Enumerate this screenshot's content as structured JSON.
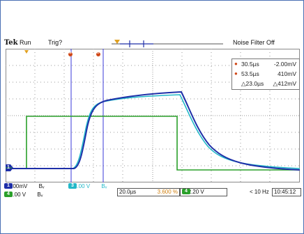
{
  "header": {
    "brand": "Tek",
    "run_state": "Run",
    "trigger_state": "Trig?",
    "noise_filter": "Noise Filter Off"
  },
  "cursor_readout": {
    "cursor1_time": "30.5µs",
    "cursor1_value": "-2.00mV",
    "cursor2_time": "53.5µs",
    "cursor2_value": "410mV",
    "delta_time": "△23.0µs",
    "delta_value": "△412mV"
  },
  "channels": [
    {
      "id": "1",
      "scale": "100mV",
      "suffix": "Bᵥ",
      "color": "#1e2fa8"
    },
    {
      "id": "3",
      "scale": "1.00 V",
      "suffix": "Bᵥ",
      "color": "#22b8c8"
    },
    {
      "id": "4",
      "scale": "1.00 V",
      "suffix": "Bᵥ",
      "color": "#2aa02a"
    }
  ],
  "horizontal": {
    "timebase": "20.0µs",
    "trigger_position": "3.600 %"
  },
  "trigger": {
    "source": "4",
    "slope_symbol": "∕",
    "level": "2.20 V"
  },
  "acquisition": {
    "rate": "< 10 Hz",
    "time": "10:45:12"
  },
  "markers": {
    "ground_ch1": "1",
    "ground_ch4": "4",
    "cursor_a": "a",
    "cursor_b": "b"
  }
}
